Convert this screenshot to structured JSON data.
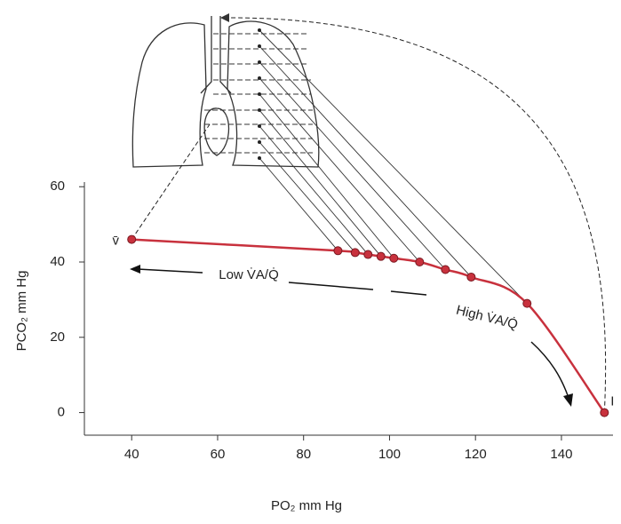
{
  "chart_data": {
    "type": "line",
    "x_label": "PO₂ mm Hg",
    "y_label": "PCO₂ mm Hg",
    "xlim": [
      29,
      152
    ],
    "ylim": [
      -6,
      61
    ],
    "xticks": [
      40,
      60,
      80,
      100,
      120,
      140
    ],
    "yticks": [
      0,
      20,
      40,
      60
    ],
    "series": [
      {
        "color": "#c8313d",
        "x": [
          40,
          88,
          92,
          95,
          98,
          101,
          107,
          113,
          119,
          132,
          150
        ],
        "values": [
          46,
          43,
          42.5,
          42,
          41.5,
          41,
          40,
          38,
          36,
          29,
          0
        ]
      }
    ],
    "point_labels": {
      "start": "v̄",
      "end": "I"
    },
    "annotations": [
      "Low V̇A/Q̇",
      "High V̇A/Q̇"
    ]
  }
}
